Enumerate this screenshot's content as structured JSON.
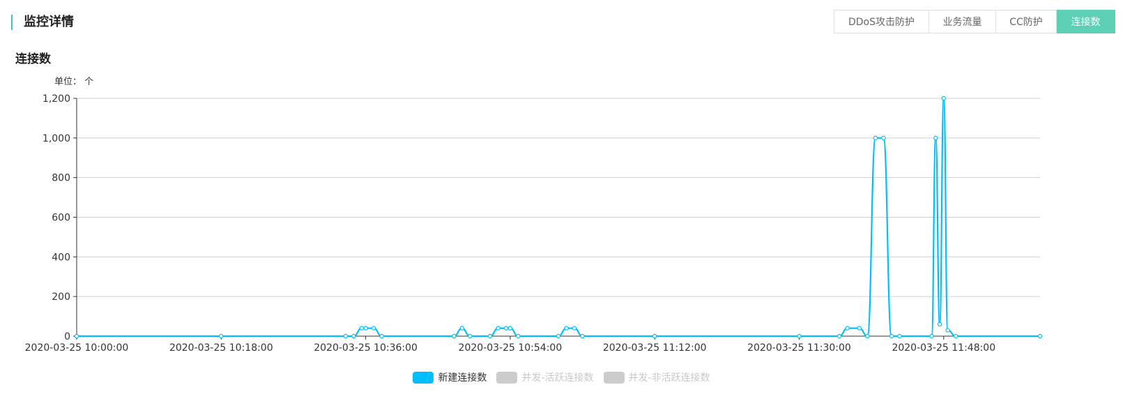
{
  "header": {
    "title": "监控详情",
    "accent_color": "#3fc8b0"
  },
  "tabs": [
    {
      "label": "DDoS攻击防护",
      "active": false
    },
    {
      "label": "业务流量",
      "active": false
    },
    {
      "label": "CC防护",
      "active": false
    },
    {
      "label": "连接数",
      "active": true
    }
  ],
  "tab_active_color": "#5ccfb5",
  "section": {
    "title": "连接数",
    "unit": "单位： 个"
  },
  "chart_data": {
    "type": "line",
    "title": "连接数",
    "ylim": [
      0,
      1200
    ],
    "yticks": [
      0,
      200,
      400,
      600,
      800,
      1000,
      1200
    ],
    "ytick_labels": [
      "0",
      "200",
      "400",
      "600",
      "800",
      "1,000",
      "1,200"
    ],
    "xlim": [
      "2020-03-25 10:00:00",
      "2020-03-25 12:00:00"
    ],
    "xticks": [
      "2020-03-25 10:00:00",
      "2020-03-25 10:18:00",
      "2020-03-25 10:36:00",
      "2020-03-25 10:54:00",
      "2020-03-25 11:12:00",
      "2020-03-25 11:30:00",
      "2020-03-25 11:48:00"
    ],
    "grid": true,
    "legend_position": "bottom-center",
    "series": [
      {
        "name": "新建连接数",
        "color": "#00bfff",
        "enabled": true,
        "x": [
          "2020-03-25 10:00:00",
          "2020-03-25 10:18:00",
          "2020-03-25 10:33:30",
          "2020-03-25 10:34:30",
          "2020-03-25 10:35:30",
          "2020-03-25 10:36:00",
          "2020-03-25 10:37:00",
          "2020-03-25 10:38:00",
          "2020-03-25 10:47:00",
          "2020-03-25 10:48:00",
          "2020-03-25 10:49:00",
          "2020-03-25 10:51:30",
          "2020-03-25 10:52:30",
          "2020-03-25 10:53:30",
          "2020-03-25 10:54:00",
          "2020-03-25 10:55:00",
          "2020-03-25 11:00:00",
          "2020-03-25 11:01:00",
          "2020-03-25 11:02:00",
          "2020-03-25 11:03:00",
          "2020-03-25 11:12:00",
          "2020-03-25 11:30:00",
          "2020-03-25 11:35:00",
          "2020-03-25 11:36:00",
          "2020-03-25 11:37:30",
          "2020-03-25 11:38:30",
          "2020-03-25 11:39:30",
          "2020-03-25 11:40:30",
          "2020-03-25 11:41:30",
          "2020-03-25 11:42:30",
          "2020-03-25 11:46:30",
          "2020-03-25 11:47:00",
          "2020-03-25 11:47:30",
          "2020-03-25 11:48:00",
          "2020-03-25 11:48:30",
          "2020-03-25 11:49:30",
          "2020-03-25 12:00:00"
        ],
        "values": [
          0,
          0,
          0,
          0,
          40,
          40,
          40,
          0,
          0,
          40,
          0,
          0,
          40,
          40,
          40,
          0,
          0,
          40,
          40,
          0,
          0,
          0,
          0,
          40,
          40,
          0,
          1000,
          1000,
          0,
          0,
          0,
          1000,
          60,
          1200,
          30,
          0,
          0
        ]
      },
      {
        "name": "并发-活跃连接数",
        "color": "#cccccc",
        "enabled": false,
        "x": [],
        "values": []
      },
      {
        "name": "并发-非活跃连接数",
        "color": "#cccccc",
        "enabled": false,
        "x": [],
        "values": []
      }
    ]
  }
}
